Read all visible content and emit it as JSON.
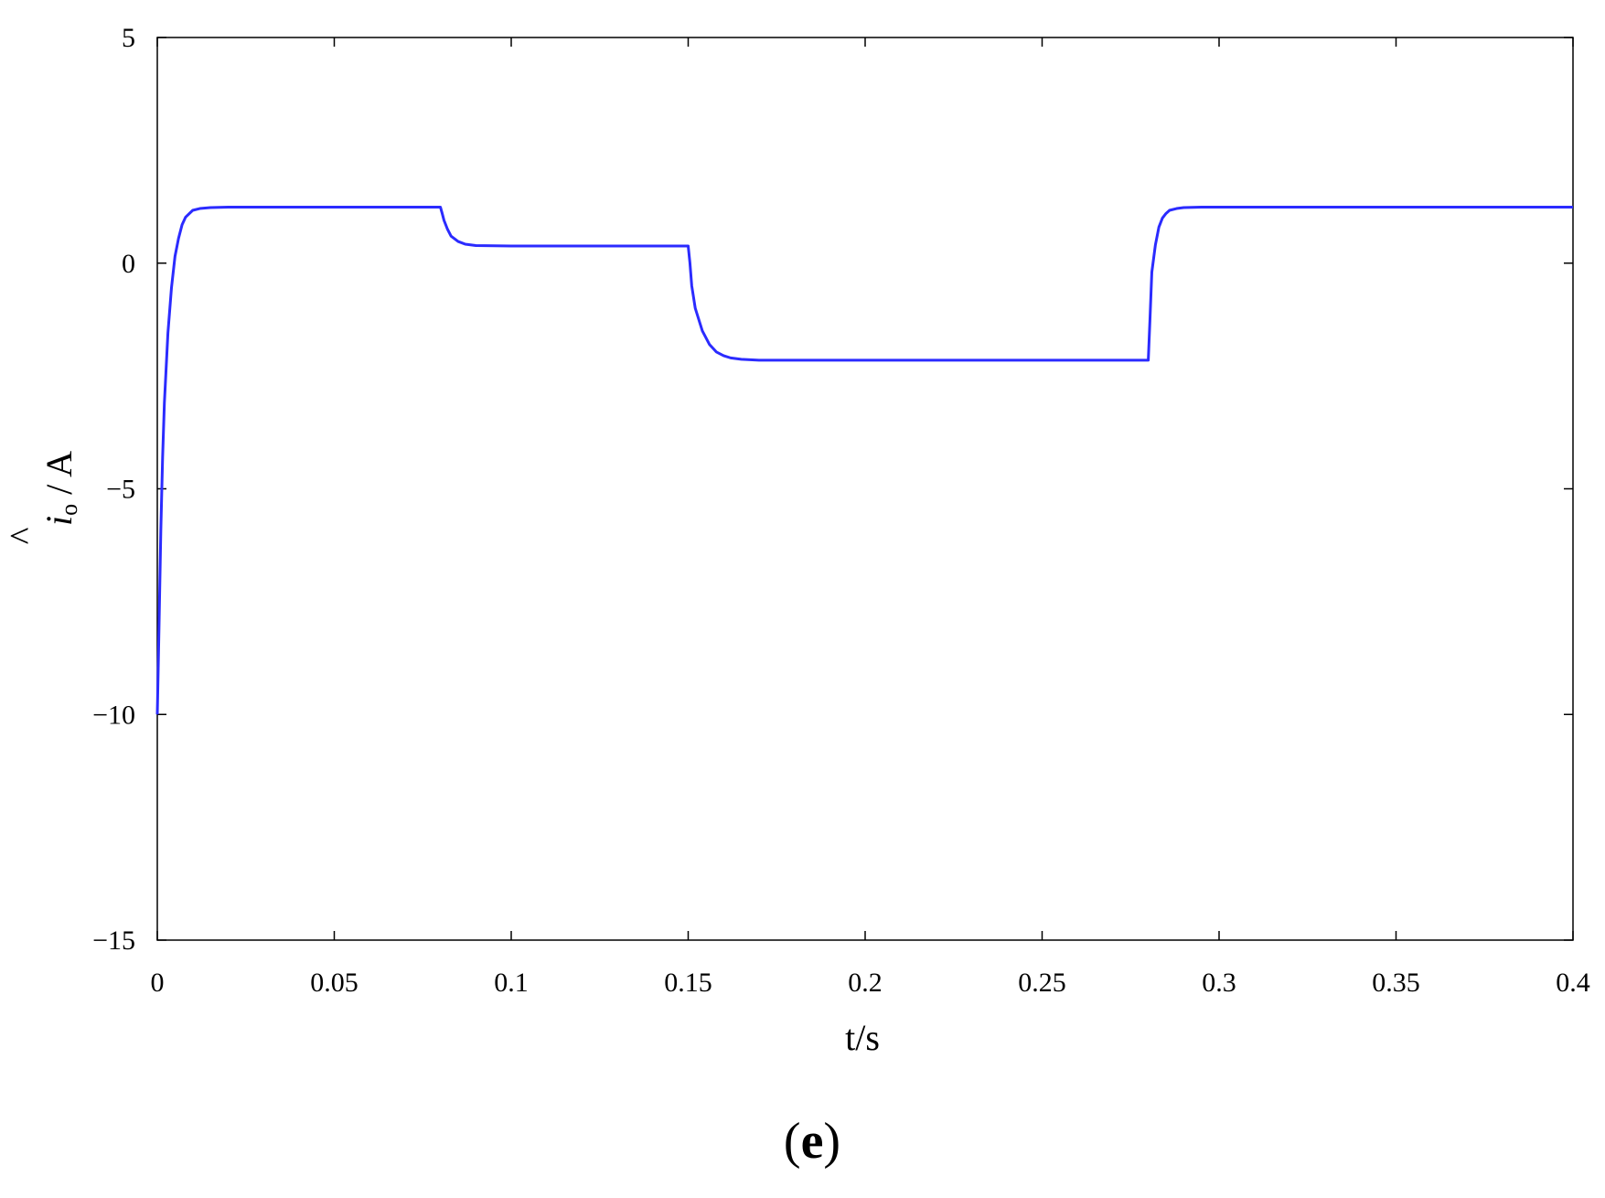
{
  "chart_data": {
    "type": "line",
    "xlabel": "t/s",
    "ylabel": {
      "hat": "^",
      "symbol": "i",
      "subscript": "o",
      "unit": " / A"
    },
    "panel_label": {
      "open": "(",
      "letter": "e",
      "close": ")"
    },
    "xlim": [
      0,
      0.4
    ],
    "ylim": [
      -15,
      5
    ],
    "xticks": [
      0,
      0.05,
      0.1,
      0.15,
      0.2,
      0.25,
      0.3,
      0.35,
      0.4
    ],
    "xtick_labels": [
      "0",
      "0.05",
      "0.1",
      "0.15",
      "0.2",
      "0.25",
      "0.3",
      "0.35",
      "0.4"
    ],
    "yticks": [
      5,
      0,
      -5,
      -10,
      -15
    ],
    "ytick_labels": [
      "5",
      "0",
      "−5",
      "−10",
      "−15"
    ],
    "grid": false,
    "series": [
      {
        "color": "#2b2bff",
        "x": [
          0,
          0.0005,
          0.001,
          0.0015,
          0.002,
          0.003,
          0.004,
          0.005,
          0.006,
          0.007,
          0.008,
          0.01,
          0.012,
          0.015,
          0.02,
          0.03,
          0.05,
          0.07,
          0.08,
          0.0805,
          0.081,
          0.082,
          0.083,
          0.085,
          0.087,
          0.09,
          0.1,
          0.12,
          0.14,
          0.15,
          0.1505,
          0.151,
          0.152,
          0.154,
          0.156,
          0.158,
          0.16,
          0.162,
          0.165,
          0.17,
          0.2,
          0.25,
          0.28,
          0.2805,
          0.281,
          0.282,
          0.283,
          0.284,
          0.285,
          0.286,
          0.288,
          0.29,
          0.295,
          0.3,
          0.35,
          0.4
        ],
        "y": [
          -10.0,
          -8.0,
          -5.9,
          -4.3,
          -3.1,
          -1.55,
          -0.55,
          0.15,
          0.55,
          0.85,
          1.02,
          1.17,
          1.21,
          1.23,
          1.24,
          1.24,
          1.24,
          1.24,
          1.24,
          1.1,
          0.95,
          0.75,
          0.6,
          0.48,
          0.42,
          0.39,
          0.38,
          0.38,
          0.38,
          0.38,
          0.0,
          -0.5,
          -1.0,
          -1.5,
          -1.8,
          -1.97,
          -2.05,
          -2.1,
          -2.13,
          -2.15,
          -2.15,
          -2.15,
          -2.15,
          -1.2,
          -0.2,
          0.4,
          0.8,
          1.0,
          1.1,
          1.17,
          1.21,
          1.23,
          1.24,
          1.24,
          1.24,
          1.24
        ]
      }
    ]
  }
}
